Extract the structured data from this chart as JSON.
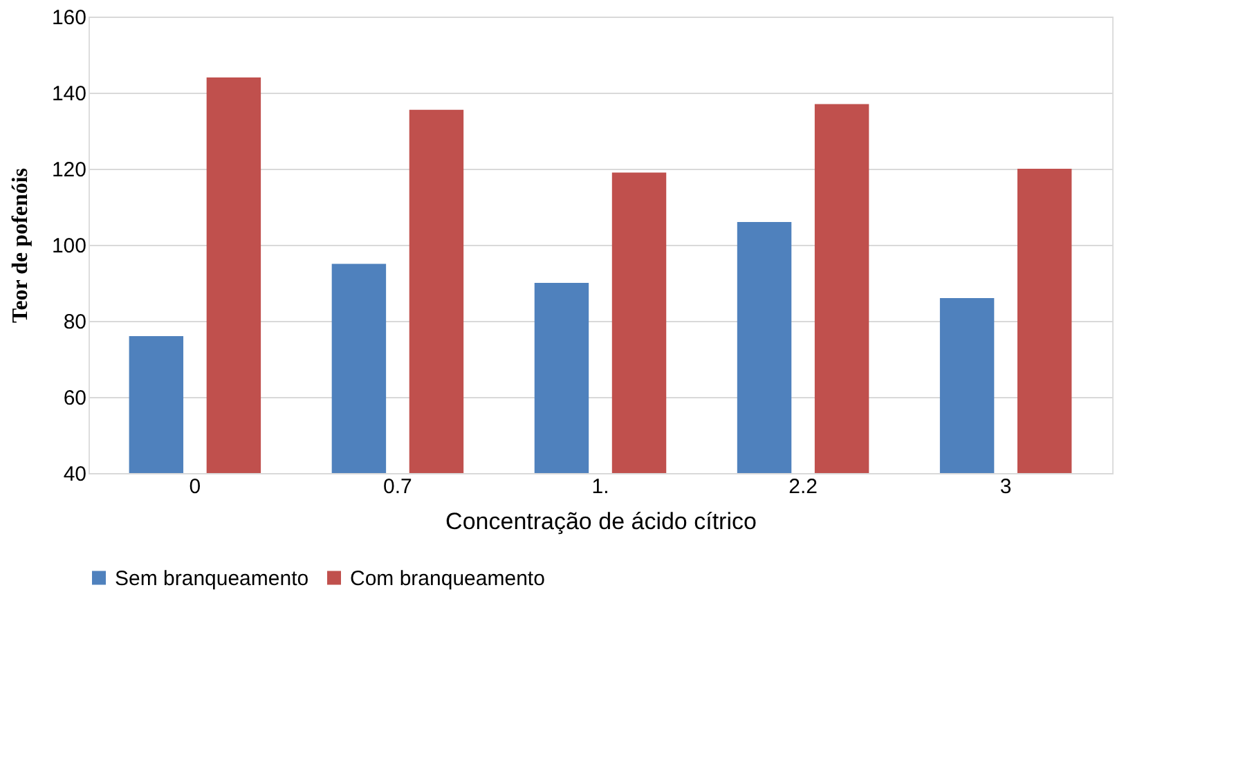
{
  "chart_data": {
    "type": "bar",
    "xlabel": "Concentração de ácido cítrico",
    "ylabel": "Teor de pofenóis",
    "categories": [
      "0",
      "0.7",
      "1.",
      "2.2",
      "3"
    ],
    "series": [
      {
        "name": "Sem branqueamento",
        "color": "#4f81bd",
        "values": [
          76,
          95,
          90,
          106,
          86
        ]
      },
      {
        "name": "Com branqueamento",
        "color": "#c0504d",
        "values": [
          144,
          135.5,
          119,
          137,
          120
        ]
      }
    ],
    "ylim": [
      40,
      160
    ],
    "yticks": [
      40,
      60,
      80,
      100,
      120,
      140,
      160
    ],
    "grid": "y",
    "legend": "bottom"
  }
}
